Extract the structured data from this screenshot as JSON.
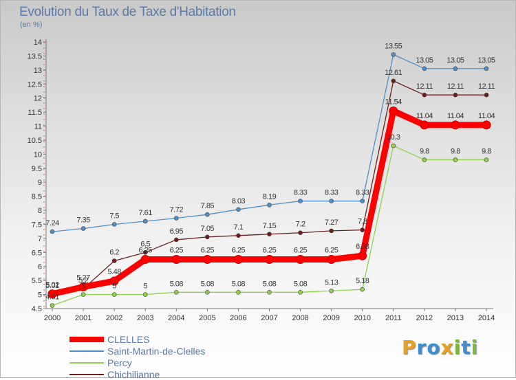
{
  "header": {
    "title": "Evolution du Taux de Taxe d'Habitation",
    "subtitle": "(en %)"
  },
  "logo": {
    "letters": [
      "P",
      "r",
      "o",
      "x",
      "i",
      "t",
      "i"
    ],
    "colors": [
      "#e8a021",
      "#3f8fd0",
      "#3f8fd0",
      "#e8a021",
      "#7ab93a",
      "#3f8fd0",
      "#7ab93a"
    ]
  },
  "chart_data": {
    "type": "line",
    "title": "Evolution du Taux de Taxe d'Habitation",
    "ylabel": "(en %)",
    "x": [
      "2000",
      "2001",
      "2002",
      "2003",
      "2004",
      "2005",
      "2006",
      "2007",
      "2008",
      "2009",
      "2010",
      "2011",
      "2012",
      "2013",
      "2014"
    ],
    "ylim": [
      4.5,
      14
    ],
    "yticks": [
      "4.5",
      "5",
      "5.5",
      "6",
      "6.5",
      "7",
      "7.5",
      "8",
      "8.5",
      "9",
      "9.5",
      "10",
      "10.5",
      "11",
      "11.5",
      "12",
      "12.5",
      "13",
      "13.5",
      "14"
    ],
    "grid": false,
    "legend_position": "bottom-left",
    "series": [
      {
        "name": "CLELLES",
        "color": "#ff0000",
        "values": [
          5.02,
          5.27,
          5.48,
          6.25,
          6.25,
          6.25,
          6.25,
          6.25,
          6.25,
          6.25,
          6.38,
          11.54,
          11.04,
          11.04,
          11.04
        ],
        "labels": [
          "5.02",
          "5.27",
          "5.48",
          "6.25",
          "6.25",
          "6.25",
          "6.25",
          "6.25",
          "6.25",
          "6.25",
          "6.38",
          "11.54",
          "11.04",
          "11.04",
          "11.04"
        ]
      },
      {
        "name": "Saint-Martin-de-Clelles",
        "color": "#4f8fc7",
        "values": [
          7.24,
          7.35,
          7.5,
          7.61,
          7.72,
          7.85,
          8.03,
          8.19,
          8.33,
          8.33,
          8.33,
          13.55,
          13.05,
          13.05,
          13.05
        ],
        "labels": [
          "7.24",
          "7.35",
          "7.5",
          "7.61",
          "7.72",
          "7.85",
          "8.03",
          "8.19",
          "8.33",
          "8.33",
          "8.33",
          "13.55",
          "13.05",
          "13.05",
          "13.05"
        ]
      },
      {
        "name": "Percy",
        "color": "#8fd14a",
        "values": [
          4.61,
          5,
          5,
          5,
          5.08,
          5.08,
          5.08,
          5.08,
          5.08,
          5.13,
          5.18,
          10.3,
          9.8,
          9.8,
          9.8
        ],
        "labels": [
          "4.61",
          "5",
          "5",
          "5",
          "5.08",
          "5.08",
          "5.08",
          "5.08",
          "5.08",
          "5.13",
          "5.18",
          "10.3",
          "9.8",
          "9.8",
          "9.8"
        ]
      },
      {
        "name": "Chichilianne",
        "color": "#6b1d1d",
        "values": [
          5.01,
          5.2,
          6.2,
          6.5,
          6.95,
          7.05,
          7.1,
          7.15,
          7.2,
          7.27,
          7.3,
          12.61,
          12.11,
          12.11,
          12.11
        ],
        "labels": [
          "5.01",
          "5.2",
          "6.2",
          "6.5",
          "6.95",
          "7.05",
          "7.1",
          "7.15",
          "7.2",
          "7.27",
          "7.3",
          "12.61",
          "12.11",
          "12.11",
          "12.11"
        ]
      }
    ]
  }
}
